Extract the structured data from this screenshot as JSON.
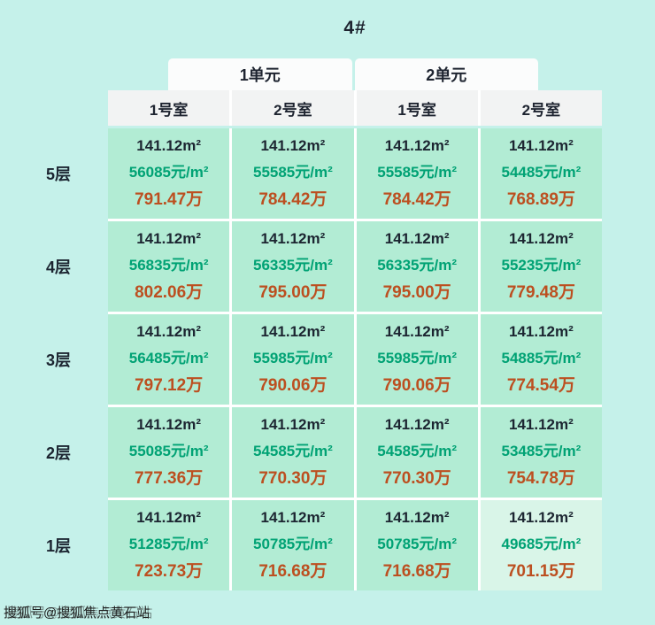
{
  "page": {
    "title": "4#",
    "watermark": "搜狐号@搜狐焦点黄石站"
  },
  "chart_data": {
    "type": "table",
    "title": "4#",
    "unit_headers": [
      "1单元",
      "2单元"
    ],
    "room_headers": [
      "1号室",
      "2号室",
      "1号室",
      "2号室"
    ],
    "floors": [
      {
        "label": "5层",
        "cells": [
          {
            "area": "141.12m²",
            "unit_price": "56085元/m²",
            "total": "791.47万"
          },
          {
            "area": "141.12m²",
            "unit_price": "55585元/m²",
            "total": "784.42万"
          },
          {
            "area": "141.12m²",
            "unit_price": "55585元/m²",
            "total": "784.42万"
          },
          {
            "area": "141.12m²",
            "unit_price": "54485元/m²",
            "total": "768.89万"
          }
        ]
      },
      {
        "label": "4层",
        "cells": [
          {
            "area": "141.12m²",
            "unit_price": "56835元/m²",
            "total": "802.06万"
          },
          {
            "area": "141.12m²",
            "unit_price": "56335元/m²",
            "total": "795.00万"
          },
          {
            "area": "141.12m²",
            "unit_price": "56335元/m²",
            "total": "795.00万"
          },
          {
            "area": "141.12m²",
            "unit_price": "55235元/m²",
            "total": "779.48万"
          }
        ]
      },
      {
        "label": "3层",
        "cells": [
          {
            "area": "141.12m²",
            "unit_price": "56485元/m²",
            "total": "797.12万"
          },
          {
            "area": "141.12m²",
            "unit_price": "55985元/m²",
            "total": "790.06万"
          },
          {
            "area": "141.12m²",
            "unit_price": "55985元/m²",
            "total": "790.06万"
          },
          {
            "area": "141.12m²",
            "unit_price": "54885元/m²",
            "total": "774.54万"
          }
        ]
      },
      {
        "label": "2层",
        "cells": [
          {
            "area": "141.12m²",
            "unit_price": "55085元/m²",
            "total": "777.36万"
          },
          {
            "area": "141.12m²",
            "unit_price": "54585元/m²",
            "total": "770.30万"
          },
          {
            "area": "141.12m²",
            "unit_price": "54585元/m²",
            "total": "770.30万"
          },
          {
            "area": "141.12m²",
            "unit_price": "53485元/m²",
            "total": "754.78万"
          }
        ]
      },
      {
        "label": "1层",
        "cells": [
          {
            "area": "141.12m²",
            "unit_price": "51285元/m²",
            "total": "723.73万"
          },
          {
            "area": "141.12m²",
            "unit_price": "50785元/m²",
            "total": "716.68万"
          },
          {
            "area": "141.12m²",
            "unit_price": "50785元/m²",
            "total": "716.68万"
          },
          {
            "area": "141.12m²",
            "unit_price": "49685元/m²",
            "total": "701.15万",
            "highlight": true
          }
        ]
      }
    ]
  },
  "colors": {
    "page_background": "#c5f1ea",
    "cell_background": "#b2ecd4",
    "highlight_cell_background": "#d9f5e8",
    "header_background": "#f2f3f3",
    "area_text": "#1c2531",
    "unit_price_text": "#00a274",
    "total_price_text": "#bc4f20"
  }
}
